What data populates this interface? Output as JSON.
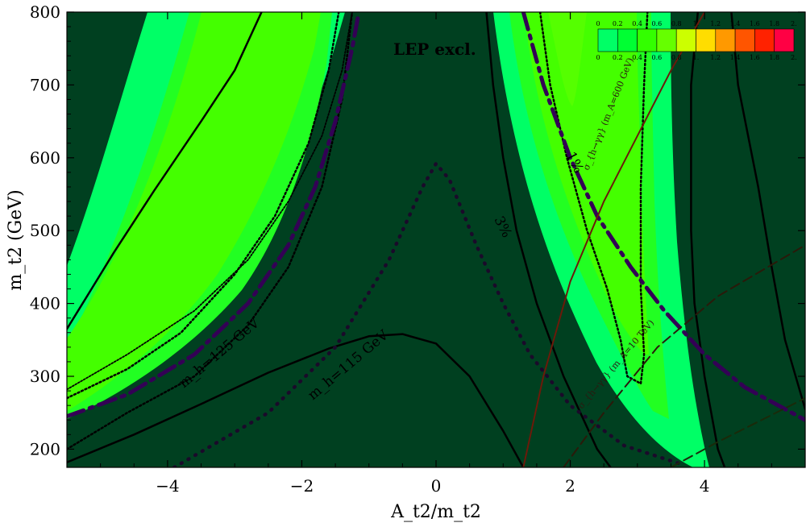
{
  "chart_data": {
    "type": "contour",
    "xlabel": "A_t2/m_t2",
    "ylabel": "m_t2 (GeV)",
    "xlim": [
      -5.5,
      5.5
    ],
    "ylim": [
      175,
      800
    ],
    "xticks": [
      -4,
      -2,
      0,
      2,
      4
    ],
    "yticks": [
      200,
      300,
      400,
      500,
      600,
      700,
      800
    ],
    "colorbar": {
      "levels": [
        "0",
        "0.2",
        "0.4",
        "0.6",
        "0.8",
        "1.",
        "1.2",
        "1.4",
        "1.6",
        "1.8",
        "2."
      ],
      "colors": [
        "#00ff66",
        "#00ff33",
        "#33ff00",
        "#66ff00",
        "#ccff00",
        "#ffdd00",
        "#ff9900",
        "#ff5500",
        "#ff2200",
        "#ff0044"
      ]
    },
    "background_color": "#004020",
    "annotations": {
      "lep": "LEP excl.",
      "mh125": "m_h=125 GeV",
      "mh115": "m_h=115 GeV",
      "pct1": "1%",
      "pct3": "3%",
      "cs600": "σ_{h→γγ} (m_A=600 GeV)",
      "cs10": "σ_{h→γγ} (m_A=10 TeV)"
    },
    "curves": {
      "mh115": [
        [
          -5.5,
          182
        ],
        [
          -4.5,
          220
        ],
        [
          -3.5,
          262
        ],
        [
          -2.5,
          305
        ],
        [
          -1.6,
          338
        ],
        [
          -1.0,
          355
        ],
        [
          -0.5,
          358
        ],
        [
          0.0,
          345
        ],
        [
          0.5,
          300
        ],
        [
          1.0,
          225
        ],
        [
          1.3,
          175
        ]
      ],
      "mh125_left_outer": [
        [
          -5.5,
          365
        ],
        [
          -5.2,
          410
        ],
        [
          -4.8,
          470
        ],
        [
          -4.2,
          555
        ],
        [
          -3.5,
          650
        ],
        [
          -3.0,
          720
        ],
        [
          -2.6,
          800
        ]
      ],
      "mh125_left_inner": [
        [
          -5.5,
          282
        ],
        [
          -4.6,
          330
        ],
        [
          -3.6,
          390
        ],
        [
          -2.8,
          460
        ],
        [
          -2.2,
          540
        ],
        [
          -1.7,
          630
        ],
        [
          -1.4,
          720
        ],
        [
          -1.25,
          800
        ]
      ],
      "mh125_right_inner": [
        [
          0.75,
          800
        ],
        [
          0.85,
          700
        ],
        [
          1.0,
          600
        ],
        [
          1.2,
          500
        ],
        [
          1.5,
          400
        ],
        [
          1.9,
          300
        ],
        [
          2.4,
          200
        ],
        [
          2.6,
          175
        ]
      ],
      "mh125_right_outer": [
        [
          3.9,
          800
        ],
        [
          3.8,
          700
        ],
        [
          3.8,
          600
        ],
        [
          3.8,
          500
        ],
        [
          3.85,
          400
        ],
        [
          4.0,
          300
        ],
        [
          4.2,
          200
        ],
        [
          4.3,
          175
        ]
      ],
      "far_right": [
        [
          5.5,
          255
        ],
        [
          5.2,
          350
        ],
        [
          5.0,
          450
        ],
        [
          4.8,
          560
        ],
        [
          4.5,
          700
        ],
        [
          4.4,
          800
        ]
      ],
      "dotted_left_a": [
        [
          -5.5,
          270
        ],
        [
          -4.6,
          310
        ],
        [
          -3.8,
          360
        ],
        [
          -3.0,
          440
        ],
        [
          -2.4,
          520
        ],
        [
          -1.9,
          620
        ],
        [
          -1.6,
          720
        ],
        [
          -1.45,
          800
        ]
      ],
      "dotted_left_b": [
        [
          -5.5,
          200
        ],
        [
          -4.6,
          250
        ],
        [
          -3.6,
          300
        ],
        [
          -2.8,
          370
        ],
        [
          -2.2,
          450
        ],
        [
          -1.7,
          560
        ],
        [
          -1.4,
          680
        ],
        [
          -1.25,
          800
        ]
      ],
      "dotted_mid": [
        [
          -3.9,
          175
        ],
        [
          -2.5,
          250
        ],
        [
          -1.5,
          340
        ],
        [
          -0.7,
          460
        ],
        [
          -0.2,
          560
        ],
        [
          0.0,
          592
        ],
        [
          0.2,
          570
        ],
        [
          0.6,
          480
        ],
        [
          1.0,
          400
        ],
        [
          1.4,
          330
        ],
        [
          2.0,
          260
        ],
        [
          2.8,
          205
        ],
        [
          3.7,
          178
        ]
      ],
      "dotted_right_loop": [
        [
          1.55,
          800
        ],
        [
          1.7,
          700
        ],
        [
          1.95,
          600
        ],
        [
          2.25,
          500
        ],
        [
          2.55,
          420
        ],
        [
          2.75,
          350
        ],
        [
          2.85,
          300
        ],
        [
          3.05,
          290
        ],
        [
          3.1,
          330
        ],
        [
          3.05,
          420
        ],
        [
          3.05,
          560
        ],
        [
          3.1,
          700
        ],
        [
          3.15,
          800
        ]
      ],
      "dashdot_left": [
        [
          -5.5,
          245
        ],
        [
          -4.6,
          275
        ],
        [
          -3.6,
          330
        ],
        [
          -2.8,
          400
        ],
        [
          -2.2,
          480
        ],
        [
          -1.8,
          560
        ],
        [
          -1.5,
          650
        ],
        [
          -1.25,
          750
        ],
        [
          -1.15,
          800
        ]
      ],
      "dashdot_right": [
        [
          1.3,
          800
        ],
        [
          1.6,
          700
        ],
        [
          2.0,
          600
        ],
        [
          2.4,
          520
        ],
        [
          2.9,
          450
        ],
        [
          3.4,
          390
        ],
        [
          4.0,
          330
        ],
        [
          4.6,
          285
        ],
        [
          5.5,
          240
        ]
      ],
      "brown_line": [
        [
          1.3,
          175
        ],
        [
          1.6,
          300
        ],
        [
          2.0,
          430
        ],
        [
          2.5,
          540
        ],
        [
          3.0,
          630
        ],
        [
          3.5,
          720
        ],
        [
          4.0,
          800
        ]
      ],
      "brown_dashed": [
        [
          1.9,
          175
        ],
        [
          2.5,
          250
        ],
        [
          3.3,
          340
        ],
        [
          4.2,
          410
        ],
        [
          5.5,
          480
        ]
      ],
      "green_dashed": [
        [
          3.5,
          175
        ],
        [
          4.2,
          210
        ],
        [
          5.5,
          270
        ]
      ]
    }
  }
}
